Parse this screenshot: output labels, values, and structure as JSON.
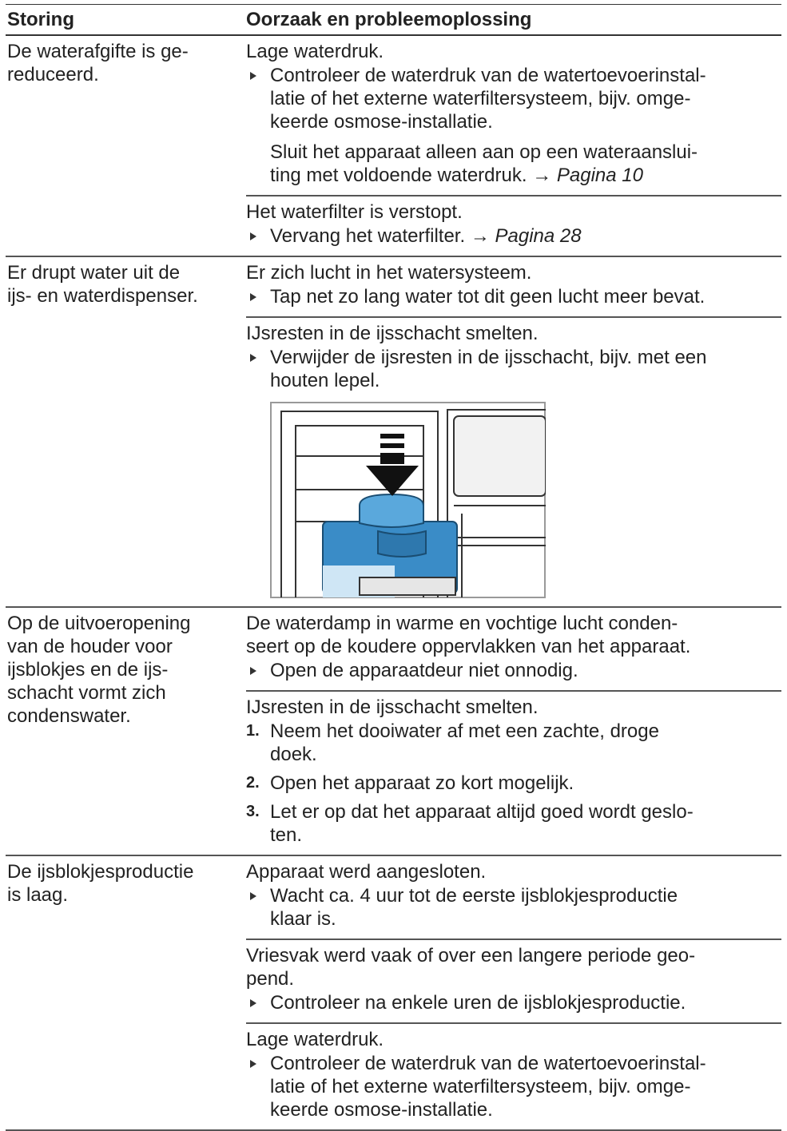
{
  "table": {
    "header": [
      "Storing",
      "Oorzaak en probleemoplossing"
    ],
    "rows": [
      {
        "fault": "De waterafgifte is ge-\nreduceerd.",
        "causes": [
          {
            "cause": "Lage waterdruk.",
            "steps": [
              {
                "text": "Controleer de waterdruk van de watertoevoerinstal-\nlatie of het externe waterfiltersysteem, bijv. omge-\nkeerde osmose-installatie."
              }
            ],
            "note": "Sluit het apparaat alleen aan op een wateraanslui-\nting met voldoende waterdruk.",
            "ref": {
              "arrow": "→",
              "page": "Pagina 10"
            }
          },
          {
            "cause": "Het waterfilter is verstopt.",
            "steps": [
              {
                "text": "Vervang het waterfilter.",
                "ref": {
                  "arrow": "→",
                  "page": "Pagina 28"
                }
              }
            ]
          }
        ]
      },
      {
        "fault": "Er drupt water uit de\nijs- en waterdispenser.",
        "causes": [
          {
            "cause": "Er zich lucht in het watersysteem.",
            "steps": [
              {
                "text": "Tap net zo lang water tot dit geen lucht meer bevat."
              }
            ]
          },
          {
            "cause": "IJsresten in de ijsschacht smelten.",
            "steps": [
              {
                "text": "Verwijder de ijsresten in de ijsschacht, bijv. met een\nhouten lepel."
              }
            ]
          }
        ]
      },
      {
        "fault": "Op de uitvoeropening\nvan de houder voor\nijsblokjes en de ijs-\nschacht vormt zich\ncondenswater.",
        "causes": [
          {
            "cause": "De waterdamp in warme en vochtige lucht conden-\nseert op de koudere oppervlakken van het apparaat.",
            "steps": [
              {
                "text": "Open de apparaatdeur niet onnodig."
              }
            ]
          },
          {
            "cause": "IJsresten in de ijsschacht smelten.",
            "steps": [
              {
                "number": "1.",
                "text": "Neem het dooiwater af met een zachte, droge\ndoek."
              },
              {
                "number": "2.",
                "text": "Open het apparaat zo kort mogelijk."
              },
              {
                "number": "3.",
                "text": "Let er op dat het apparaat altijd goed wordt geslo-\nten."
              }
            ]
          }
        ]
      },
      {
        "fault": "De ijsblokjesproductie\nis laag.",
        "causes": [
          {
            "cause": "Apparaat werd aangesloten.",
            "steps": [
              {
                "text": "Wacht ca. 4 uur tot de eerste ijsblokjesproductie\nklaar is."
              }
            ]
          },
          {
            "cause": "Vriesvak werd vaak of over een langere periode geo-\npend.",
            "steps": [
              {
                "text": "Controleer na enkele uren de ijsblokjesproductie."
              }
            ]
          },
          {
            "cause": "Lage waterdruk.",
            "steps": [
              {
                "text": "Controleer de waterdruk van de watertoevoerinstal-\nlatie of het externe waterfiltersysteem, bijv. omge-\nkeerde osmose-installatie."
              }
            ]
          }
        ]
      }
    ]
  }
}
